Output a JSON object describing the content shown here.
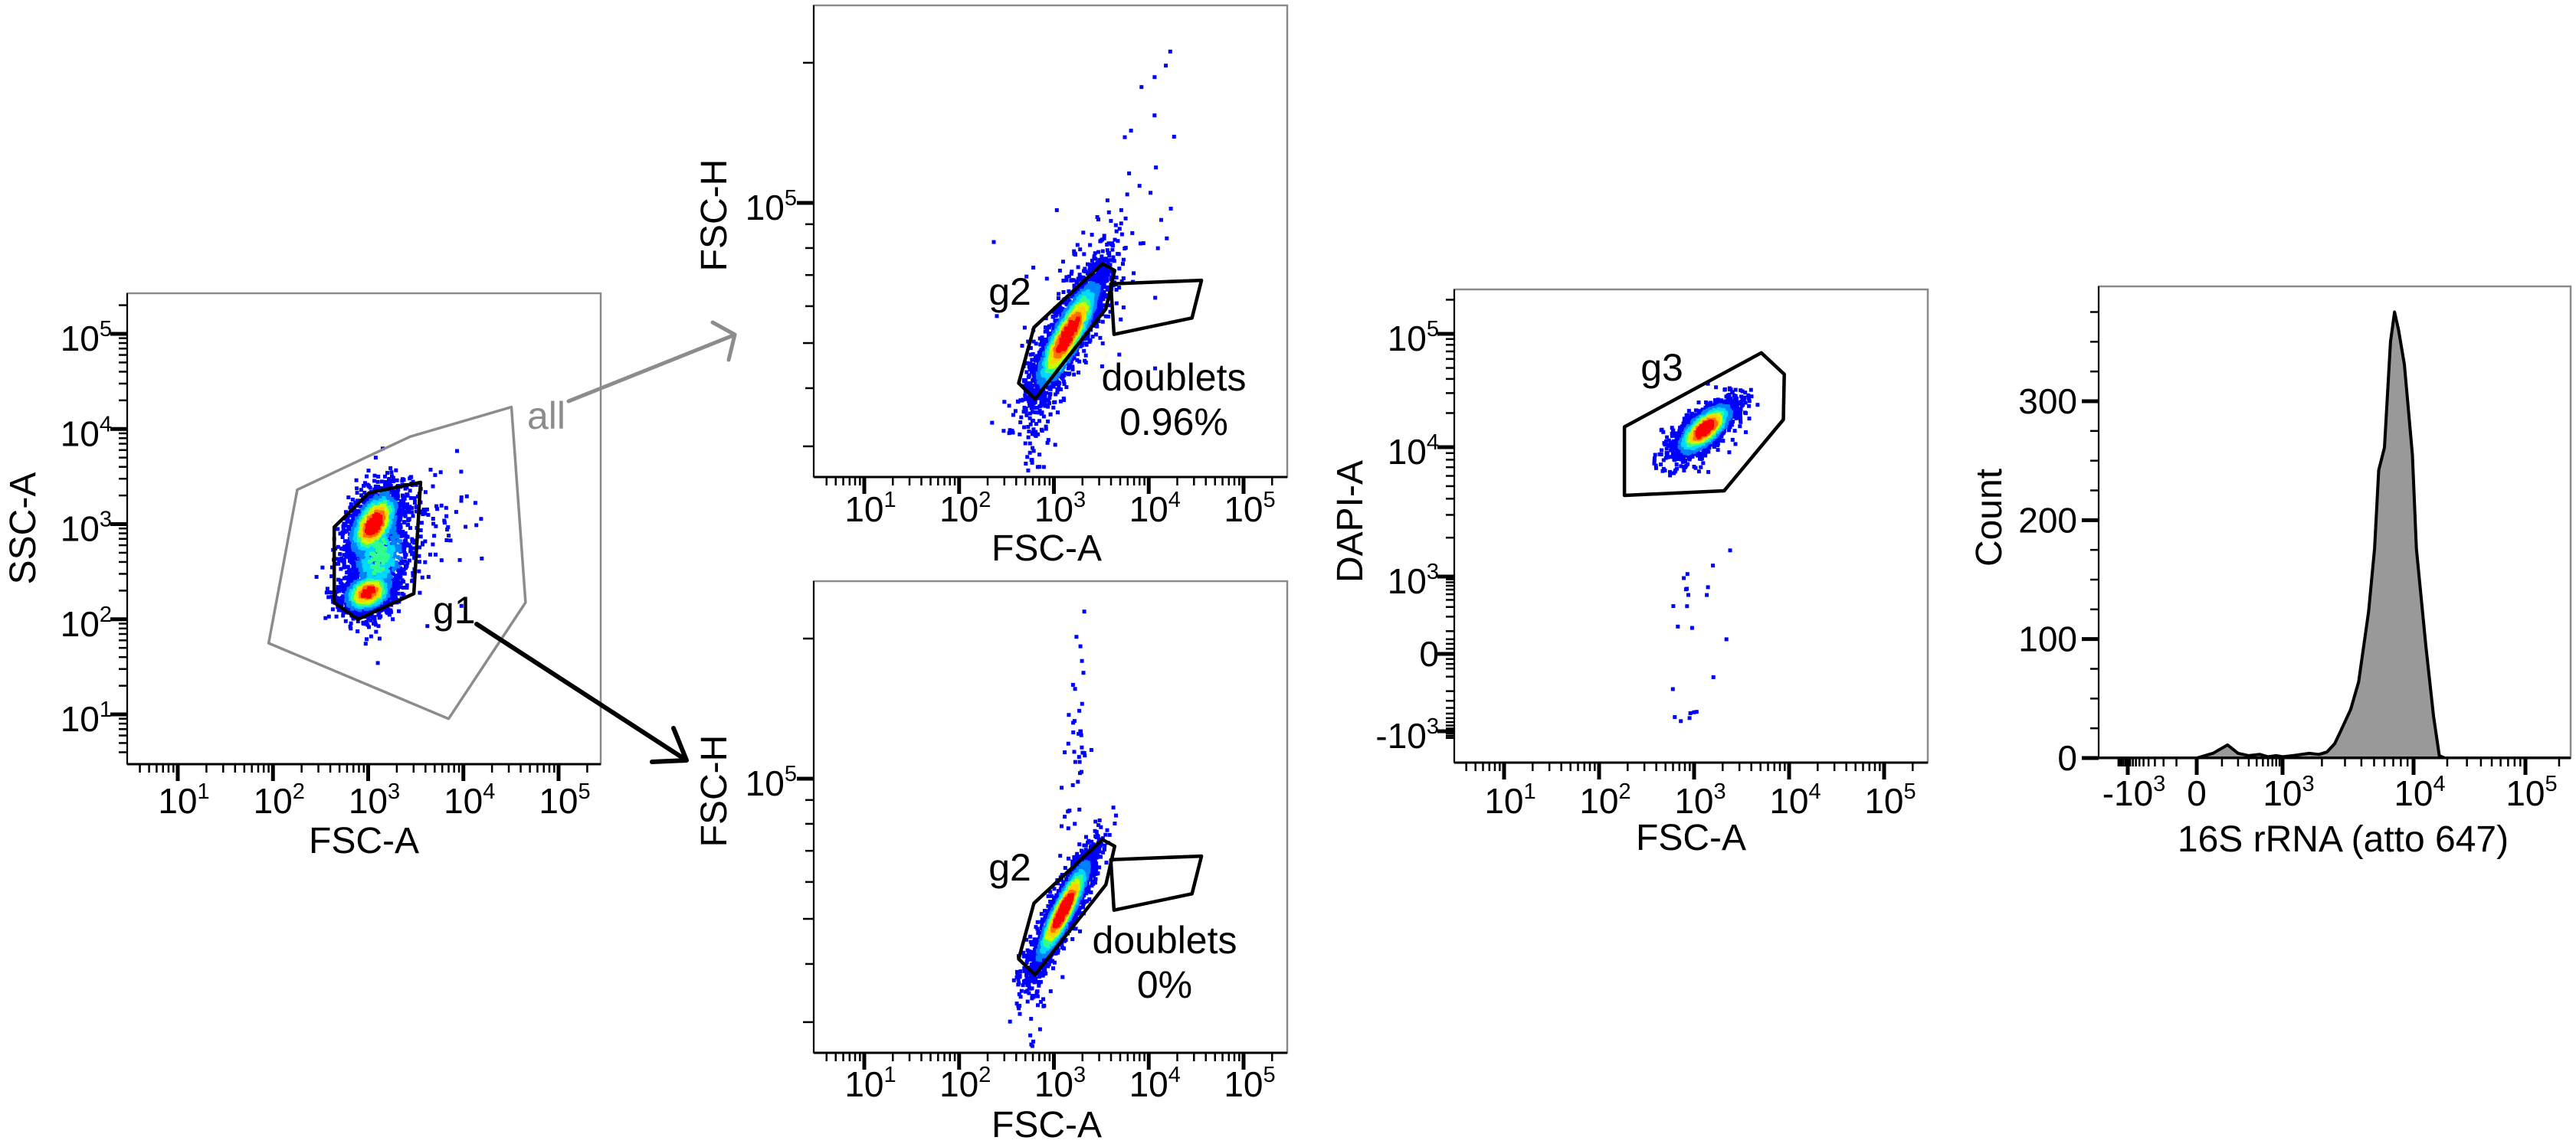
{
  "figure": {
    "arrow_colors": {
      "all_to_fsc_h": "#8c8c8c",
      "g1_to_fsc_h": "#000000"
    },
    "density_colormap": [
      "#0000ff",
      "#0080ff",
      "#00d8ff",
      "#30ff90",
      "#c8ff00",
      "#ffd000",
      "#ff7000",
      "#ff0000"
    ]
  },
  "chart_data": [
    {
      "type": "scatter",
      "xlabel": "FSC-A",
      "ylabel": "SSC-A",
      "xscale": "log",
      "yscale": "log",
      "xlim": [
        3,
        280000
      ],
      "ylim": [
        3,
        270000
      ],
      "xticks": [
        {
          "value": 10,
          "base": "10",
          "exp": "1"
        },
        {
          "value": 100,
          "base": "10",
          "exp": "2"
        },
        {
          "value": 1000,
          "base": "10",
          "exp": "3"
        },
        {
          "value": 10000,
          "base": "10",
          "exp": "4"
        },
        {
          "value": 100000,
          "base": "10",
          "exp": "5"
        }
      ],
      "yticks": [
        {
          "value": 10,
          "base": "10",
          "exp": "1"
        },
        {
          "value": 100,
          "base": "10",
          "exp": "2"
        },
        {
          "value": 1000,
          "base": "10",
          "exp": "3"
        },
        {
          "value": 10000,
          "base": "10",
          "exp": "4"
        },
        {
          "value": 100000,
          "base": "10",
          "exp": "5"
        }
      ],
      "gates": [
        {
          "name": "all",
          "label": "all",
          "color": "#8c8c8c",
          "vertices": [
            [
              180,
              2300
            ],
            [
              2750,
              8300
            ],
            [
              32000,
              17000
            ],
            [
              45000,
              150
            ],
            [
              7000,
              9
            ],
            [
              90,
              56
            ]
          ]
        },
        {
          "name": "g1",
          "label": "g1",
          "color": "#000000",
          "vertices": [
            [
              440,
              930
            ],
            [
              1020,
              2130
            ],
            [
              3550,
              2750
            ],
            [
              3020,
              186
            ],
            [
              780,
              100
            ],
            [
              440,
              150
            ]
          ]
        }
      ],
      "populations": [
        {
          "center": [
            1150,
            1000
          ],
          "spread_log10": [
            0.15,
            0.2
          ],
          "correlation": 0.5,
          "events": 1500,
          "peak": 1.0
        },
        {
          "center": [
            1000,
            190
          ],
          "spread_log10": [
            0.15,
            0.12
          ],
          "correlation": 0.3,
          "events": 1100,
          "peak": 0.9
        },
        {
          "center": [
            1300,
            450
          ],
          "spread_log10": [
            0.18,
            0.3
          ],
          "correlation": 0.2,
          "events": 900,
          "peak": 0.45
        },
        {
          "center": [
            3000,
            900
          ],
          "spread_log10": [
            0.35,
            0.4
          ],
          "correlation": 0.3,
          "events": 120,
          "peak": 0.05
        }
      ]
    },
    {
      "type": "scatter",
      "xlabel": "FSC-A",
      "ylabel": "FSC-H",
      "xscale": "log",
      "yscale": "log",
      "xlim": [
        3,
        280000
      ],
      "ylim": [
        25800,
        265000
      ],
      "xticks": [
        {
          "value": 10,
          "base": "10",
          "exp": "1"
        },
        {
          "value": 100,
          "base": "10",
          "exp": "2"
        },
        {
          "value": 1000,
          "base": "10",
          "exp": "3"
        },
        {
          "value": 10000,
          "base": "10",
          "exp": "4"
        },
        {
          "value": 100000,
          "base": "10",
          "exp": "5"
        }
      ],
      "yticks": [
        {
          "value": 100000,
          "base": "10",
          "exp": "5"
        }
      ],
      "gates": [
        {
          "name": "g2",
          "label": "g2",
          "color": "#000000",
          "vertices": [
            [
              425,
              41000
            ],
            [
              615,
              54000
            ],
            [
              3250,
              74000
            ],
            [
              4370,
              71600
            ],
            [
              3530,
              59200
            ],
            [
              630,
              37900
            ]
          ]
        },
        {
          "name": "doublets",
          "label": "doublets",
          "percent": "0.96%",
          "color": "#000000",
          "vertices": [
            [
              3980,
              67000
            ],
            [
              36000,
              68200
            ],
            [
              28600,
              56600
            ],
            [
              4300,
              52200
            ]
          ]
        }
      ],
      "populations": [
        {
          "center": [
            1400,
            52000
          ],
          "spread_log10": [
            0.2,
            0.07
          ],
          "correlation": 0.85,
          "events": 2600,
          "peak": 1.0
        },
        {
          "center": [
            2500,
            70000
          ],
          "spread_log10": [
            0.35,
            0.1
          ],
          "correlation": 0.3,
          "events": 110,
          "peak": 0.05
        },
        {
          "center": [
            700,
            33000
          ],
          "spread_log10": [
            0.1,
            0.05
          ],
          "correlation": 0.5,
          "events": 60,
          "peak": 0.05
        },
        {
          "center": [
            12000,
            170000
          ],
          "spread_log10": [
            0.15,
            0.1
          ],
          "correlation": 0.5,
          "events": 8,
          "peak": 0.0
        }
      ]
    },
    {
      "type": "scatter",
      "xlabel": "FSC-A",
      "ylabel": "FSC-H",
      "xscale": "log",
      "yscale": "log",
      "xlim": [
        3,
        280000
      ],
      "ylim": [
        25800,
        265000
      ],
      "xticks": [
        {
          "value": 10,
          "base": "10",
          "exp": "1"
        },
        {
          "value": 100,
          "base": "10",
          "exp": "2"
        },
        {
          "value": 1000,
          "base": "10",
          "exp": "3"
        },
        {
          "value": 10000,
          "base": "10",
          "exp": "4"
        },
        {
          "value": 100000,
          "base": "10",
          "exp": "5"
        }
      ],
      "yticks": [
        {
          "value": 100000,
          "base": "10",
          "exp": "5"
        }
      ],
      "gates": [
        {
          "name": "g2",
          "label": "g2",
          "color": "#000000",
          "vertices": [
            [
              425,
              41000
            ],
            [
              615,
              54000
            ],
            [
              3250,
              74000
            ],
            [
              4370,
              71600
            ],
            [
              3530,
              59200
            ],
            [
              630,
              37900
            ]
          ]
        },
        {
          "name": "doublets",
          "label": "doublets",
          "percent": "0%",
          "color": "#000000",
          "vertices": [
            [
              3980,
              67000
            ],
            [
              36000,
              68200
            ],
            [
              28600,
              56600
            ],
            [
              4300,
              52200
            ]
          ]
        }
      ],
      "populations": [
        {
          "center": [
            1250,
            52000
          ],
          "spread_log10": [
            0.17,
            0.065
          ],
          "correlation": 0.9,
          "events": 2600,
          "peak": 1.0
        },
        {
          "center": [
            1700,
            110000
          ],
          "spread_log10": [
            0.08,
            0.12
          ],
          "correlation": 0.2,
          "events": 45,
          "peak": 0.0
        },
        {
          "center": [
            650,
            33000
          ],
          "spread_log10": [
            0.06,
            0.05
          ],
          "correlation": 0.3,
          "events": 30,
          "peak": 0.0
        }
      ]
    },
    {
      "type": "scatter",
      "xlabel": "FSC-A",
      "ylabel": "DAPI-A",
      "xscale": "log",
      "yscale": "biexponential",
      "xlim": [
        3,
        280000
      ],
      "ylim": [
        -1400,
        250000
      ],
      "xticks": [
        {
          "value": 10,
          "base": "10",
          "exp": "1"
        },
        {
          "value": 100,
          "base": "10",
          "exp": "2"
        },
        {
          "value": 1000,
          "base": "10",
          "exp": "3"
        },
        {
          "value": 10000,
          "base": "10",
          "exp": "4"
        },
        {
          "value": 100000,
          "base": "10",
          "exp": "5"
        }
      ],
      "yticks": [
        {
          "value": 100000,
          "base": "10",
          "exp": "5"
        },
        {
          "value": 10000,
          "base": "10",
          "exp": "4"
        },
        {
          "value": 1000,
          "base": "10",
          "exp": "3"
        },
        {
          "value": 0,
          "base": "0",
          "exp": ""
        },
        {
          "value": -1000,
          "base": "-10",
          "exp": "3"
        }
      ],
      "gates": [
        {
          "name": "g3",
          "label": "g3",
          "color": "#000000",
          "vertices": [
            [
              185,
              15100
            ],
            [
              5100,
              68000
            ],
            [
              8900,
              44000
            ],
            [
              8700,
              17500
            ],
            [
              2070,
              4600
            ],
            [
              185,
              4240
            ]
          ]
        }
      ],
      "populations": [
        {
          "center": [
            1300,
            14500
          ],
          "spread_log10": [
            0.17,
            0.13
          ],
          "correlation": 0.7,
          "events": 1700,
          "peak": 1.0
        },
        {
          "center": [
            900,
            150
          ],
          "spread_log10": [
            0.18,
            0
          ],
          "spread_linear_y": 550,
          "correlation": 0,
          "events": 22,
          "peak": 0.0
        }
      ]
    },
    {
      "type": "area",
      "xlabel": "16S rRNA (atto 647)",
      "ylabel": "Count",
      "xscale": "biexponential",
      "yscale": "linear",
      "xlim": [
        -1600,
        250000
      ],
      "ylim": [
        0,
        398
      ],
      "xticks": [
        {
          "value": -1000,
          "base": "-10",
          "exp": "3"
        },
        {
          "value": 0,
          "base": "0",
          "exp": ""
        },
        {
          "value": 1000,
          "base": "10",
          "exp": "3"
        },
        {
          "value": 10000,
          "base": "10",
          "exp": "4"
        },
        {
          "value": 100000,
          "base": "10",
          "exp": "5"
        }
      ],
      "yticks": [
        {
          "value": 0,
          "base": "0",
          "exp": ""
        },
        {
          "value": 100,
          "base": "100",
          "exp": ""
        },
        {
          "value": 200,
          "base": "200",
          "exp": ""
        },
        {
          "value": 300,
          "base": "300",
          "exp": ""
        }
      ],
      "fill": "#999999",
      "histogram": {
        "x": [
          -1600,
          -200,
          0,
          60,
          130,
          200,
          300,
          450,
          600,
          800,
          1000,
          1200,
          1600,
          1900,
          2180,
          2500,
          2790,
          3320,
          3810,
          4540,
          5040,
          5420,
          6000,
          6670,
          7160,
          7680,
          8510,
          9800,
          10600,
          12900,
          15100,
          17000,
          19000,
          250000
        ],
        "count": [
          0,
          0,
          0,
          4,
          11,
          4,
          2,
          3,
          1,
          2,
          1,
          2,
          4,
          3,
          5,
          12,
          23,
          41,
          64,
          123,
          176,
          242,
          261,
          350,
          375,
          360,
          331,
          255,
          176,
          94,
          35,
          2,
          0,
          0
        ]
      }
    }
  ]
}
